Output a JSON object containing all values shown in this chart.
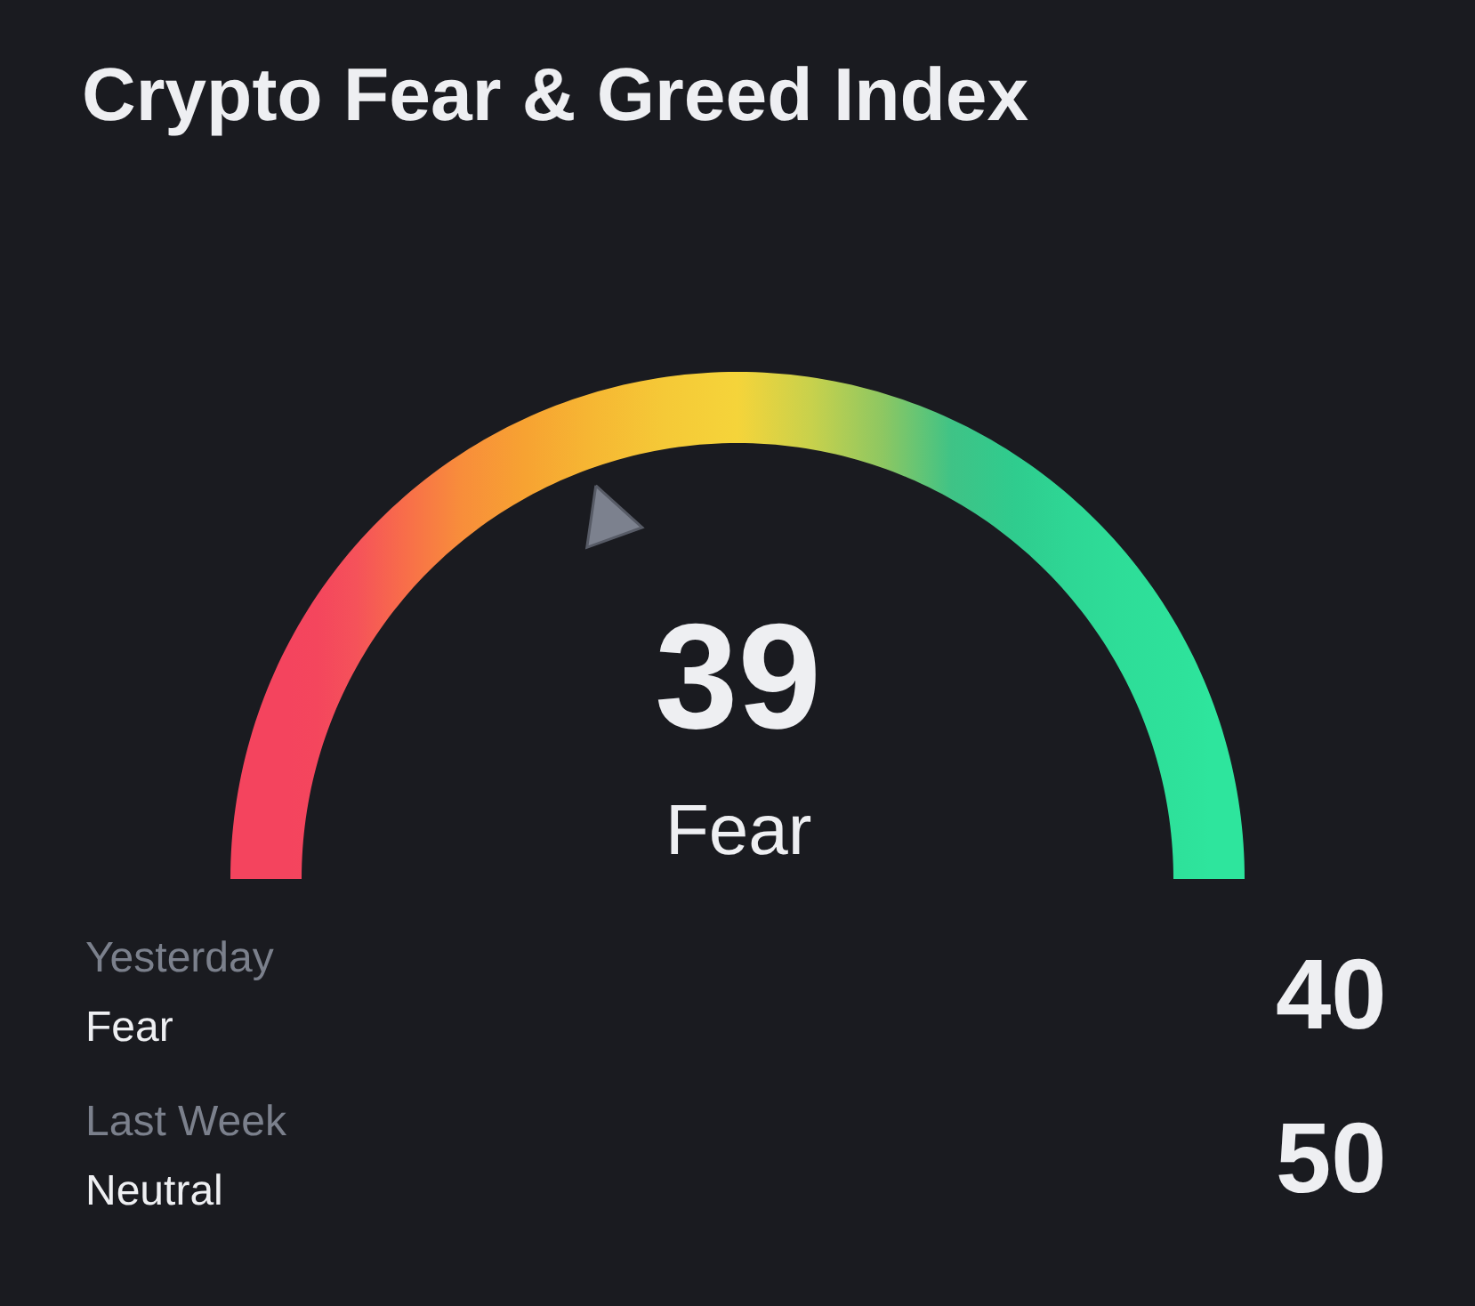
{
  "chart_data": {
    "type": "other",
    "title": "Crypto Fear & Greed Index",
    "categories": [
      null,
      "Yesterday",
      "Last Week"
    ],
    "values": [
      39,
      40,
      50
    ],
    "data_labels": true,
    "annotations": [
      "Fear",
      "Fear",
      "Neutral"
    ]
  }
}
